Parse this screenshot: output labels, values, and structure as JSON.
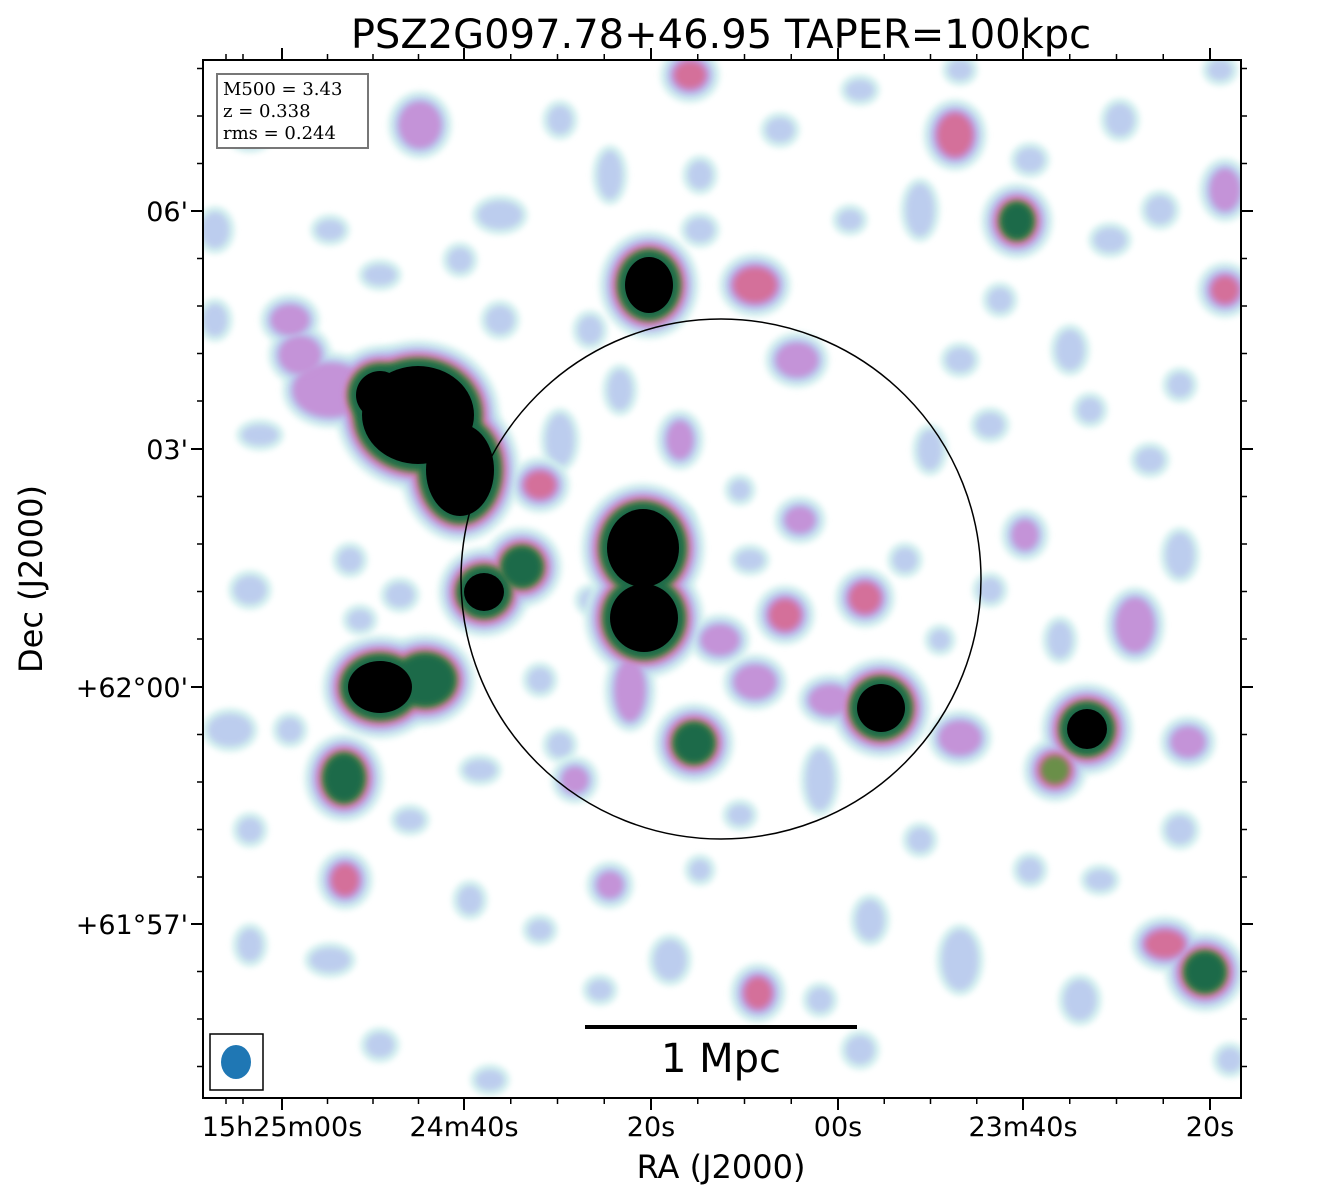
{
  "chart_data": {
    "type": "heatmap",
    "title": "PSZ2G097.78+46.95 TAPER=100kpc",
    "xlabel": "RA (J2000)",
    "ylabel": "Dec (J2000)",
    "x_tick_labels": [
      "15h25m00s",
      "24m40s",
      "20s",
      "00s",
      "23m40s",
      "20s"
    ],
    "y_tick_labels": [
      "06'",
      "03'",
      "+62°00'",
      "+61°57'"
    ],
    "info_box": [
      "M500 = 3.43",
      "z = 0.338",
      "rms = 0.244"
    ],
    "scale_bar_label": "1 Mpc",
    "colormap": [
      "#ffffff",
      "#cfeeed",
      "#b9c8ee",
      "#c493d8",
      "#d4709a",
      "#6a8f4a",
      "#1a6a48",
      "#000000"
    ],
    "beam_color": "#1f77b4",
    "grid": false
  }
}
